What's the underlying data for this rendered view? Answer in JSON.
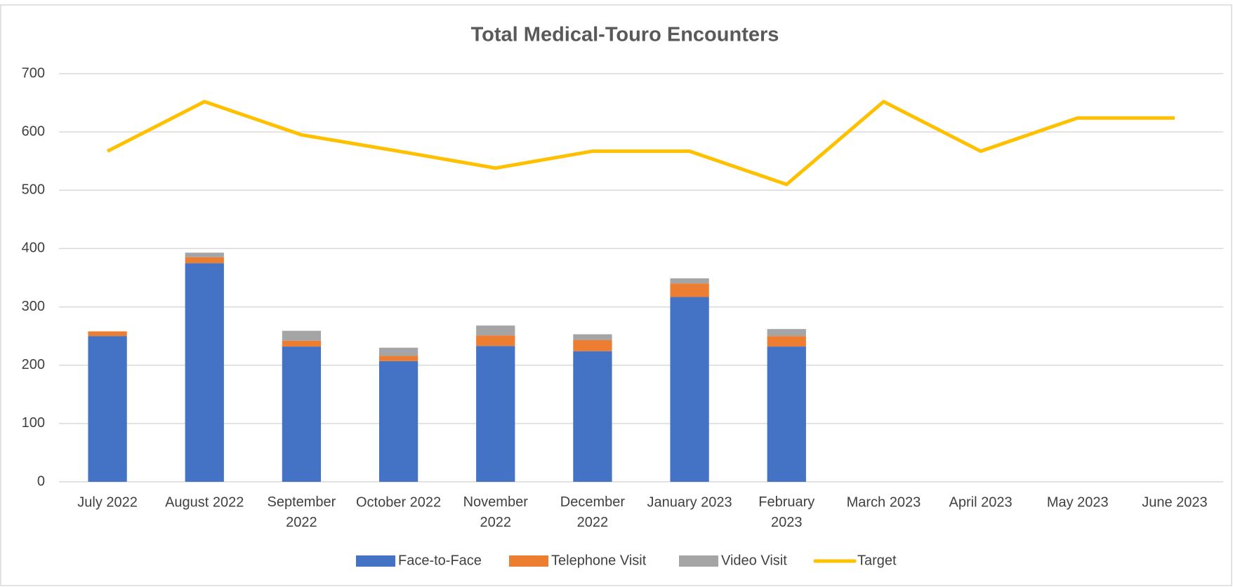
{
  "chart_data": {
    "type": "bar",
    "stacked": true,
    "title": "Total Medical-Touro Encounters",
    "categories": [
      "July 2022",
      "August 2022",
      "September 2022",
      "October 2022",
      "November 2022",
      "December 2022",
      "January 2023",
      "February 2023",
      "March 2023",
      "April 2023",
      "May 2023",
      "June 2023"
    ],
    "series": [
      {
        "name": "Face-to-Face",
        "color": "#4472c4",
        "type": "bar",
        "values": [
          250,
          375,
          232,
          207,
          233,
          224,
          317,
          232,
          null,
          null,
          null,
          null
        ]
      },
      {
        "name": "Telephone Visit",
        "color": "#ed7d31",
        "type": "bar",
        "values": [
          8,
          10,
          10,
          9,
          18,
          19,
          23,
          18,
          null,
          null,
          null,
          null
        ]
      },
      {
        "name": "Video Visit",
        "color": "#a5a5a5",
        "type": "bar",
        "values": [
          0,
          8,
          17,
          14,
          17,
          10,
          9,
          12,
          null,
          null,
          null,
          null
        ]
      },
      {
        "name": "Target",
        "color": "#ffc000",
        "type": "line",
        "values": [
          567,
          652,
          595,
          567,
          538,
          567,
          567,
          510,
          652,
          567,
          624,
          624
        ]
      }
    ],
    "ylim": [
      0,
      700
    ],
    "yticks": [
      0,
      100,
      200,
      300,
      400,
      500,
      600,
      700
    ],
    "grid": true,
    "legend": "bottom"
  }
}
